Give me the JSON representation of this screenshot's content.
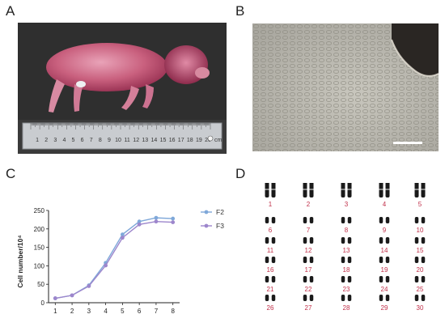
{
  "panels": {
    "a": "A",
    "b": "B",
    "c": "C",
    "d": "D"
  },
  "photo_a": {
    "ruler_numbers": [
      "1",
      "2",
      "3",
      "4",
      "5",
      "6",
      "7",
      "8",
      "9",
      "10",
      "11",
      "12",
      "13",
      "14",
      "15",
      "16",
      "17",
      "18",
      "19",
      "20"
    ],
    "ruler_unit": "cm"
  },
  "photo_b": {},
  "chart_data": {
    "type": "line",
    "x": [
      1,
      2,
      3,
      4,
      5,
      6,
      7,
      8
    ],
    "series": [
      {
        "name": "F2",
        "values": [
          12,
          20,
          47,
          108,
          185,
          220,
          230,
          228
        ],
        "color": "#7fa8d9"
      },
      {
        "name": "F3",
        "values": [
          12,
          20,
          45,
          101,
          176,
          212,
          220,
          218
        ],
        "color": "#9d86cc"
      }
    ],
    "ylabel": "Cell number/10⁴",
    "xlabel": "",
    "ylim": [
      0,
      250
    ],
    "yticks": [
      0,
      50,
      100,
      150,
      200,
      250
    ],
    "xticks": [
      1,
      2,
      3,
      4,
      5,
      6,
      7,
      8
    ],
    "legend": "top-right",
    "grid": false
  },
  "karyotype": {
    "labels": [
      "1",
      "2",
      "3",
      "4",
      "5",
      "6",
      "7",
      "8",
      "9",
      "10",
      "11",
      "12",
      "13",
      "14",
      "15",
      "16",
      "17",
      "18",
      "19",
      "20",
      "21",
      "22",
      "23",
      "24",
      "25",
      "26",
      "27",
      "28",
      "29",
      "30"
    ]
  }
}
